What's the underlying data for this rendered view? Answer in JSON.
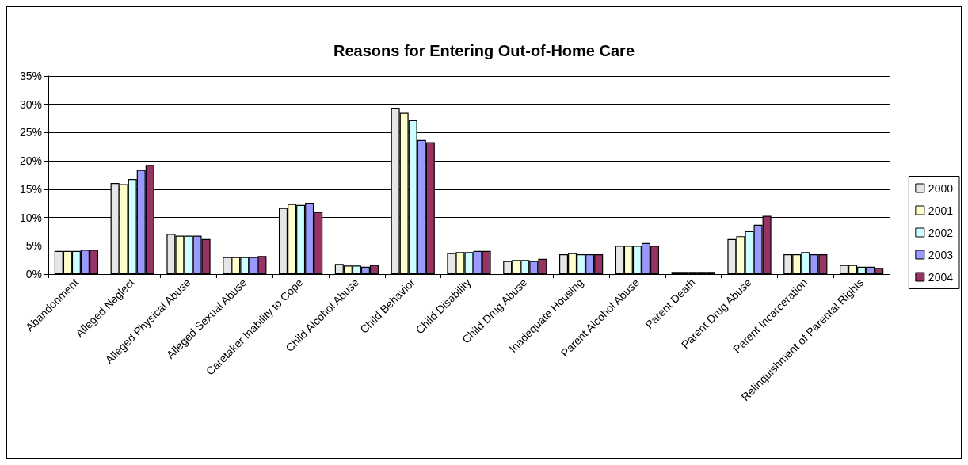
{
  "chart_data": {
    "type": "bar",
    "title": "Reasons for Entering Out-of-Home Care",
    "categories": [
      "Abandonment",
      "Alleged Neglect",
      "Alleged Physical Abuse",
      "Alleged Sexual Abuse",
      "Caretaker Inability to Cope",
      "Child Alcohol Abuse",
      "Child Behavior",
      "Child Disability",
      "Child Drug Abuse",
      "Inadequate Housing",
      "Parent Alcohol Abuse",
      "Parent Death",
      "Parent Drug Abuse",
      "Parent Incarceration",
      "Relinquishment of Parental Rights"
    ],
    "series": [
      {
        "name": "2000",
        "color": "#e6e6e6",
        "values": [
          4.1,
          16.1,
          7.1,
          3.0,
          11.7,
          1.8,
          29.4,
          3.7,
          2.3,
          3.5,
          5.0,
          0.4,
          6.2,
          3.5,
          1.6
        ]
      },
      {
        "name": "2001",
        "color": "#ffffcc",
        "values": [
          4.1,
          15.9,
          6.8,
          3.0,
          12.4,
          1.5,
          28.5,
          3.9,
          2.5,
          3.7,
          5.0,
          0.4,
          6.7,
          3.5,
          1.6
        ]
      },
      {
        "name": "2002",
        "color": "#ccffff",
        "values": [
          4.1,
          16.8,
          6.8,
          3.0,
          12.2,
          1.5,
          27.2,
          3.9,
          2.5,
          3.5,
          5.0,
          0.4,
          7.6,
          3.9,
          1.3
        ]
      },
      {
        "name": "2003",
        "color": "#9999ff",
        "values": [
          4.3,
          18.4,
          6.8,
          3.0,
          12.6,
          1.3,
          23.7,
          4.1,
          2.3,
          3.5,
          5.5,
          0.4,
          8.7,
          3.5,
          1.3
        ]
      },
      {
        "name": "2004",
        "color": "#993366",
        "values": [
          4.3,
          19.3,
          6.2,
          3.2,
          11.0,
          1.6,
          23.3,
          4.1,
          2.7,
          3.5,
          5.0,
          0.4,
          10.3,
          3.5,
          1.1
        ]
      }
    ],
    "ylim": [
      0,
      35
    ],
    "yticks": [
      {
        "value": 0,
        "label": "0%"
      },
      {
        "value": 5,
        "label": "5%"
      },
      {
        "value": 10,
        "label": "10%"
      },
      {
        "value": 15,
        "label": "15%"
      },
      {
        "value": 20,
        "label": "20%"
      },
      {
        "value": 25,
        "label": "25%"
      },
      {
        "value": 30,
        "label": "30%"
      },
      {
        "value": 35,
        "label": "35%"
      }
    ],
    "grid": "y",
    "legend": "right"
  }
}
